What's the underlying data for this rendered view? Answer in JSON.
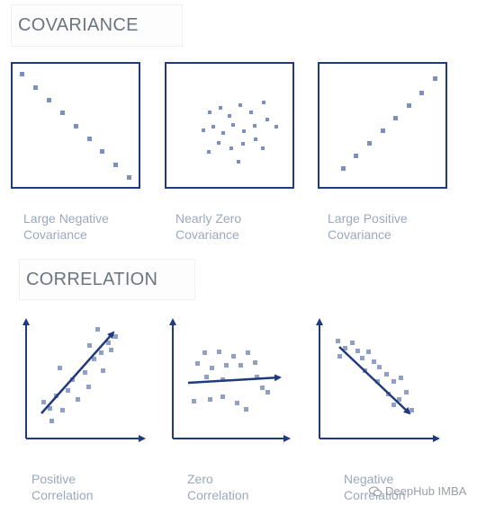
{
  "covariance": {
    "heading": "COVARIANCE",
    "panels": [
      {
        "line1": "Large Negative",
        "line2": "Covariance"
      },
      {
        "line1": "Nearly Zero",
        "line2": "Covariance"
      },
      {
        "line1": "Large Positive",
        "line2": "Covariance"
      }
    ]
  },
  "correlation": {
    "heading": "CORRELATION",
    "panels": [
      {
        "line1": "Positive",
        "line2": "Correlation"
      },
      {
        "line1": "Zero",
        "line2": "Correlation"
      },
      {
        "line1": "Negative",
        "line2": "Correlation"
      }
    ]
  },
  "watermark": "DeepHub IMBA",
  "colors": {
    "frame": "#1f3a80",
    "point": "#7b8fc0",
    "label": "#9ba8bd",
    "heading": "#6c7480"
  }
}
